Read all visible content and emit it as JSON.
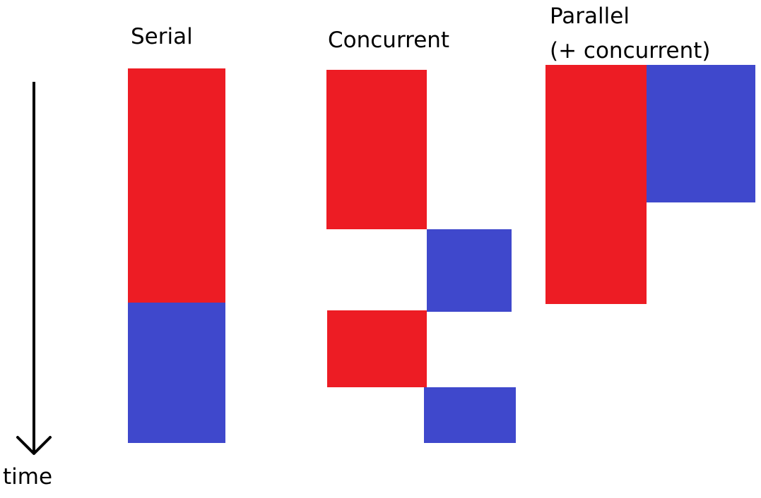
{
  "colors": {
    "task_a": "#ed1c24",
    "task_b": "#3f48cc",
    "ink": "#000000",
    "background": "#ffffff"
  },
  "axis": {
    "label": "time",
    "direction": "down"
  },
  "panels": [
    {
      "id": "serial",
      "title_lines": [
        "Serial"
      ],
      "blocks": [
        {
          "task": "task_a"
        },
        {
          "task": "task_b"
        }
      ]
    },
    {
      "id": "concurrent",
      "title_lines": [
        "Concurrent"
      ],
      "blocks": [
        {
          "task": "task_a"
        },
        {
          "task": "task_b"
        },
        {
          "task": "task_a"
        },
        {
          "task": "task_b"
        }
      ]
    },
    {
      "id": "parallel",
      "title_lines": [
        "Parallel",
        "(+ concurrent)"
      ],
      "blocks": [
        {
          "task": "task_a"
        },
        {
          "task": "task_b"
        }
      ]
    }
  ]
}
